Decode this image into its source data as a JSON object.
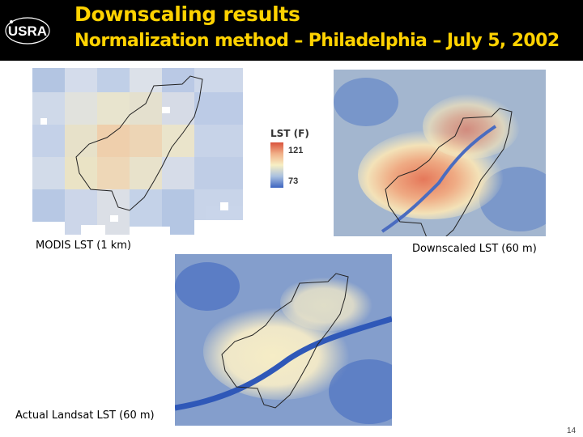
{
  "header": {
    "logo_text": "USRA",
    "title": "Downscaling results",
    "subtitle": "Normalization method – Philadelphia – July 5, 2002"
  },
  "maps": {
    "modis": {
      "caption": "MODIS LST (1 km)"
    },
    "downscaled": {
      "caption": "Downscaled LST (60 m)"
    },
    "landsat": {
      "caption": "Actual Landsat LST (60 m)"
    }
  },
  "legend": {
    "title": "LST (F)",
    "max": "121",
    "min": "73",
    "colors": [
      "#d9533c",
      "#f1b088",
      "#f7efc4",
      "#a9c0e0",
      "#3c64c0"
    ]
  },
  "page_number": "14"
}
